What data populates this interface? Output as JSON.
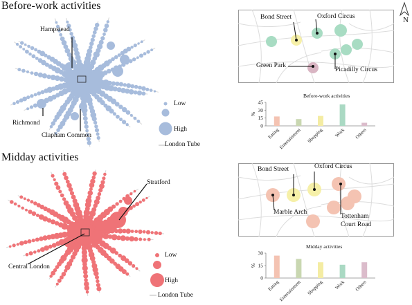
{
  "north_label": "N",
  "panels": [
    {
      "id": "before",
      "title": "Before-work activities",
      "map_labels": [
        "Hampstead",
        "Richmond",
        "Clapham Common"
      ],
      "legend": {
        "low": "Low",
        "high": "High",
        "tube": "London Tube"
      },
      "inset_labels": [
        "Bond Street",
        "Oxford Circus",
        "Green Park",
        "Picadilly Circus"
      ],
      "colors": {
        "map": "#a7bcdc",
        "bar": "#a7bcdc"
      },
      "chart": {
        "title": "Before-work activities",
        "ylabel": "%",
        "yticks": [
          "0",
          "15",
          "30",
          "45"
        ]
      }
    },
    {
      "id": "midday",
      "title": "Midday activities",
      "map_labels": [
        "Stratford",
        "Central London"
      ],
      "legend": {
        "low": "Low",
        "high": "High",
        "tube": "London Tube"
      },
      "inset_labels": [
        "Bond Street",
        "Oxford Circus",
        "Marble Arch",
        "Tottenham",
        "Court Road"
      ],
      "colors": {
        "map": "#ef7377"
      },
      "chart": {
        "title": "Midday activities",
        "ylabel": "%",
        "yticks": [
          "0",
          "15",
          "30"
        ]
      }
    }
  ],
  "chart_data": [
    {
      "type": "bar",
      "title": "Before-work activities",
      "categories": [
        "Eating",
        "Entertainment",
        "Shopping",
        "Work",
        "Others"
      ],
      "values": [
        18,
        13,
        19,
        41,
        6
      ],
      "ylabel": "%",
      "ylim": [
        0,
        45
      ],
      "colors": [
        "#f4c3b2",
        "#c9d7b1",
        "#f4eca3",
        "#aad9c3",
        "#dbbccb"
      ]
    },
    {
      "type": "bar",
      "title": "Midday activities",
      "categories": [
        "Eating",
        "Entertainment",
        "Shopping",
        "Work",
        "Others"
      ],
      "values": [
        27,
        23,
        19,
        16,
        19
      ],
      "ylabel": "%",
      "ylim": [
        0,
        30
      ],
      "colors": [
        "#f4c3b2",
        "#c9d7b1",
        "#f4eca3",
        "#aad9c3",
        "#dbbccb"
      ]
    }
  ]
}
